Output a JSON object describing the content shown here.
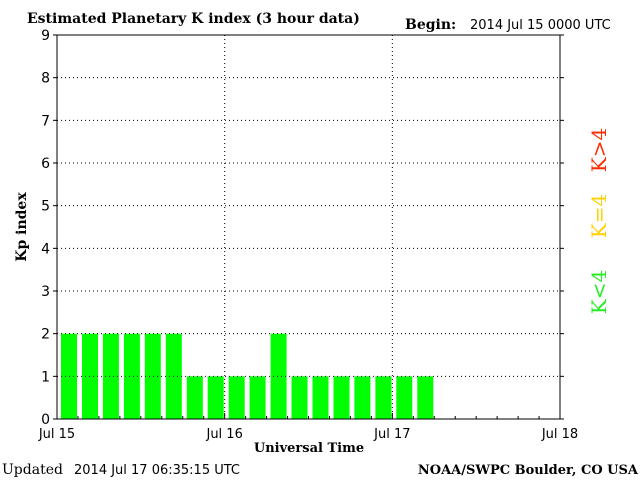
{
  "header": {
    "title": "Estimated Planetary K index (3 hour data)",
    "begin_label": "Begin:",
    "begin_value": "2014 Jul 15 0000 UTC"
  },
  "footer": {
    "updated_label": "Updated",
    "updated_value": "2014 Jul 17 06:35:15 UTC",
    "source": "NOAA/SWPC Boulder, CO USA"
  },
  "legend": [
    {
      "label": "K>4",
      "color": "#ff2a00"
    },
    {
      "label": "K=4",
      "color": "#ffd000"
    },
    {
      "label": "K<4",
      "color": "#22ee22"
    }
  ],
  "chart_data": {
    "type": "bar",
    "title": "Estimated Planetary K index (3 hour data)",
    "xlabel": "Universal Time",
    "ylabel": "Kp index",
    "ylim": [
      0,
      9
    ],
    "yticks": [
      0,
      1,
      2,
      3,
      4,
      5,
      6,
      7,
      8,
      9
    ],
    "xlim_days": [
      0,
      3
    ],
    "xtick_labels": [
      "Jul 15",
      "Jul 16",
      "Jul 17",
      "Jul 18"
    ],
    "intervals_per_day": 8,
    "grid": true,
    "bar_color": "#00ff00",
    "values": [
      2,
      2,
      2,
      2,
      2,
      2,
      1,
      1,
      1,
      1,
      2,
      1,
      1,
      1,
      1,
      1,
      1,
      1
    ]
  }
}
